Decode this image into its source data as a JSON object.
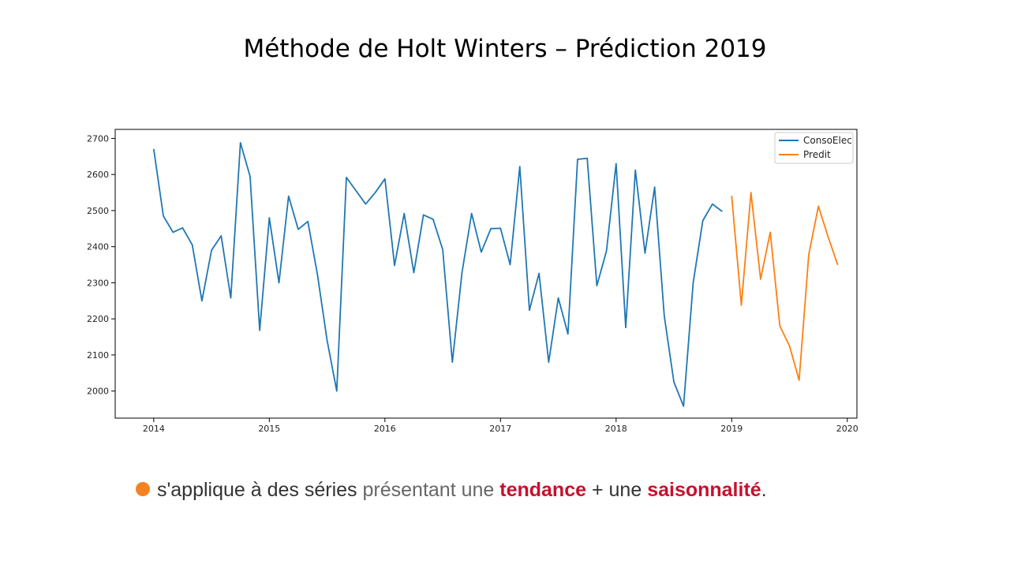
{
  "slide": {
    "title": "Méthode de Holt Winters – Prédiction 2019",
    "caption": {
      "part1": "s'applique à des séries",
      "part2": "présentant une",
      "part3": "tendance",
      "part4": "+ une",
      "part5": "saisonnalité",
      "part6": "."
    },
    "colors": {
      "bullet": "#f58220",
      "emphasis": "#c8102e"
    }
  },
  "chart_data": {
    "type": "line",
    "xlim": [
      "2013-09",
      "2020-02"
    ],
    "ylim": [
      1925,
      2725
    ],
    "x_ticks": [
      "2014",
      "2015",
      "2016",
      "2017",
      "2018",
      "2019",
      "2020"
    ],
    "y_ticks": [
      2000,
      2100,
      2200,
      2300,
      2400,
      2500,
      2600,
      2700
    ],
    "legend_position": "top-right",
    "grid": false,
    "series": [
      {
        "name": "ConsoElec",
        "color": "#1f77b4",
        "x": [
          "2014-01",
          "2014-02",
          "2014-03",
          "2014-04",
          "2014-05",
          "2014-06",
          "2014-07",
          "2014-08",
          "2014-09",
          "2014-10",
          "2014-11",
          "2014-12",
          "2015-01",
          "2015-02",
          "2015-03",
          "2015-04",
          "2015-05",
          "2015-06",
          "2015-07",
          "2015-08",
          "2015-09",
          "2015-10",
          "2015-11",
          "2015-12",
          "2016-01",
          "2016-02",
          "2016-03",
          "2016-04",
          "2016-05",
          "2016-06",
          "2016-07",
          "2016-08",
          "2016-09",
          "2016-10",
          "2016-11",
          "2016-12",
          "2017-01",
          "2017-02",
          "2017-03",
          "2017-04",
          "2017-05",
          "2017-06",
          "2017-07",
          "2017-08",
          "2017-09",
          "2017-10",
          "2017-11",
          "2017-12",
          "2018-01",
          "2018-02",
          "2018-03",
          "2018-04",
          "2018-05",
          "2018-06",
          "2018-07",
          "2018-08",
          "2018-09",
          "2018-10",
          "2018-11",
          "2018-12"
        ],
        "values": [
          2670,
          2485,
          2440,
          2452,
          2405,
          2250,
          2390,
          2430,
          2258,
          2688,
          2595,
          2168,
          2480,
          2300,
          2540,
          2448,
          2470,
          2322,
          2140,
          2000,
          2592,
          2555,
          2518,
          2550,
          2588,
          2348,
          2492,
          2328,
          2488,
          2476,
          2392,
          2080,
          2328,
          2492,
          2385,
          2450,
          2451,
          2350,
          2622,
          2224,
          2326,
          2080,
          2258,
          2158,
          2642,
          2645,
          2292,
          2388,
          2630,
          2176,
          2612,
          2382,
          2565,
          2208,
          2025,
          1958,
          2300,
          2472,
          2518,
          2498
        ]
      },
      {
        "name": "Predit",
        "color": "#ff7f0e",
        "x": [
          "2019-01",
          "2019-02",
          "2019-03",
          "2019-04",
          "2019-05",
          "2019-06",
          "2019-07",
          "2019-08",
          "2019-09",
          "2019-10",
          "2019-11",
          "2019-12"
        ],
        "values": [
          2540,
          2238,
          2550,
          2310,
          2440,
          2180,
          2125,
          2030,
          2378,
          2512,
          2428,
          2350
        ]
      }
    ]
  }
}
